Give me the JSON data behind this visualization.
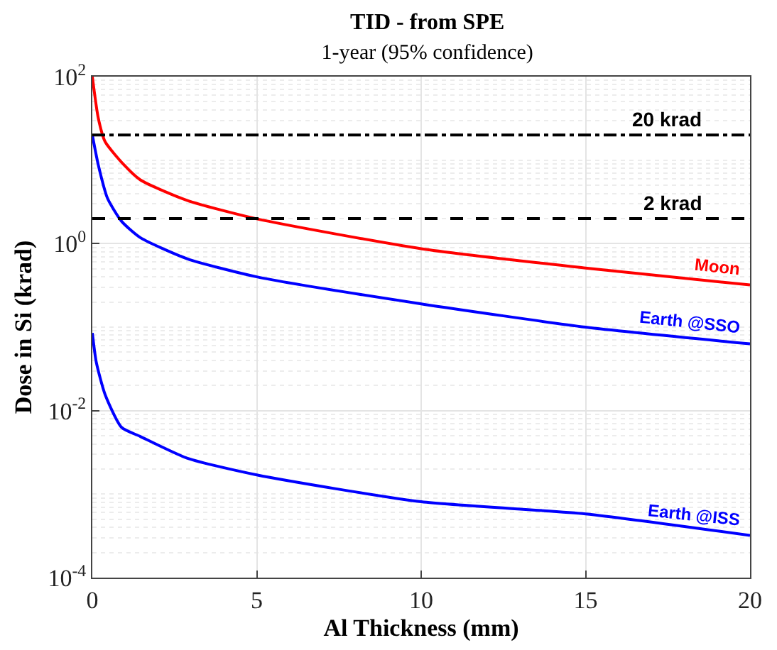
{
  "chart_data": {
    "type": "line",
    "title": "TID - from SPE",
    "subtitle": "1-year (95% confidence)",
    "xlabel": "Al Thickness (mm)",
    "ylabel": "Dose in Si (krad)",
    "series": [
      {
        "name": "Moon",
        "color": "#ff0000",
        "x": [
          0,
          0.18,
          0.39,
          0.96,
          1.46,
          2.88,
          5,
          10,
          15,
          20
        ],
        "values": [
          100,
          32,
          16.6,
          8.8,
          5.8,
          3.3,
          1.98,
          0.87,
          0.51,
          0.32
        ]
      },
      {
        "name": "Earth @SSO",
        "color": "#0000ff",
        "x": [
          0,
          0.18,
          0.46,
          0.89,
          1.46,
          2.88,
          5,
          10,
          15,
          20
        ],
        "values": [
          20,
          8.8,
          3.5,
          1.85,
          1.18,
          0.66,
          0.4,
          0.19,
          0.1,
          0.063
        ]
      },
      {
        "name": "Earth @ISS",
        "color": "#0000ff",
        "x": [
          0,
          0.12,
          0.39,
          0.89,
          1.46,
          2.88,
          5,
          10,
          15,
          20
        ],
        "values": [
          0.085,
          0.038,
          0.0155,
          0.0063,
          0.0049,
          0.0027,
          0.0017,
          0.00081,
          0.00058,
          0.00032
        ]
      }
    ],
    "ref_lines": [
      {
        "axis": "y",
        "value": 20,
        "label": "20 krad",
        "color": "#000000",
        "line_style": "dashdot"
      },
      {
        "axis": "y",
        "value": 2,
        "label": "2 krad",
        "color": "#000000",
        "line_style": "dashed"
      }
    ],
    "log": "y",
    "grid": true,
    "legend": false,
    "marker": "none",
    "line_style": "solid",
    "xlim": [
      0,
      20
    ],
    "xticks": [
      0,
      5,
      10,
      15,
      20
    ],
    "ylim": [
      0.0001,
      100
    ],
    "yticks": [
      {
        "value": 0.0001,
        "label": "10$^{-4}$"
      },
      {
        "value": 0.01,
        "label": "10$^{-2}$"
      },
      {
        "value": 1,
        "label": "10$^{0}$"
      },
      {
        "value": 100,
        "label": "10$^{2}$"
      }
    ]
  }
}
